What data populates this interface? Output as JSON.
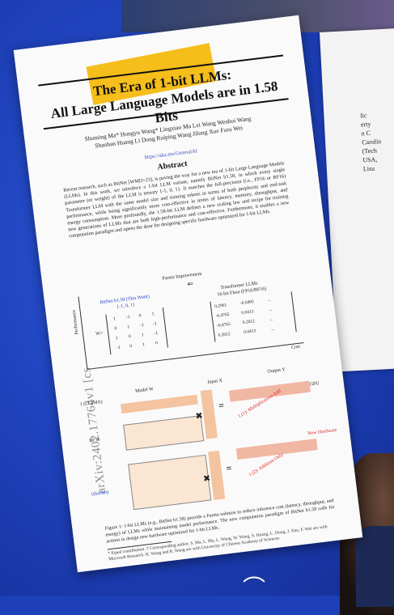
{
  "paper": {
    "title_line1": "The Era of 1-bit LLMs:",
    "title_line2": "All Large Language Models are in 1.58 Bits",
    "authors_line1": "Shuming Ma*  Hongyu Wang*  Lingxiao Ma  Lei Wang  Wenhui Wang",
    "authors_line2": "Shaohan Huang  Li Dong  Ruiping Wang  Jilong Xue  Furu Wei",
    "affiliation": "https://aka.ms/GeneralAI",
    "abstract_heading": "Abstract",
    "abstract_text": "Recent research, such as BitNet [WMD+23], is paving the way for a new era of 1-bit Large Language Models (LLMs). In this work, we introduce a 1-bit LLM variant, namely BitNet b1.58, in which every single parameter (or weight) of the LLM is ternary {-1, 0, 1}. It matches the full-precision (i.e., FP16 or BF16) Transformer LLM with the same model size and training tokens in terms of both perplexity and end-task performance, while being significantly more cost-effective in terms of latency, memory, throughput, and energy consumption. More profoundly, the 1.58-bit LLM defines a new scaling law and recipe for training new generations of LLMs that are both high-performance and cost-effective. Furthermore, it enables a new computation paradigm and opens the door for designing specific hardware optimized for 1-bit LLMs.",
    "arxiv_id": "arXiv:2402.17764v1 [cs",
    "figure": {
      "top_caption": "Pareto Improvement",
      "left_box_title": "BitNet b1.58 (This Work)",
      "left_box_sub": "{-1, 0, 1}",
      "right_box_title": "Transformer LLMs",
      "right_box_sub": "16-bit Float (FP16/BF16)",
      "w_label": "W=",
      "y_axis_label": "Performance",
      "x_axis_label": "Cost",
      "row1_label": "1 (LLaMA)",
      "row2_label": "BF16",
      "row3_label": "1(bitNet)",
      "model_label": "Model W",
      "input_label": "Input X",
      "output_label": "Output Y",
      "new_hardware": "New Hardware",
      "gpu_label": "GPU",
      "add_mul": "1.(1): Multiplication-Add",
      "add_only": "1.(2): Addition Only",
      "left_matrix": [
        "1",
        "-1",
        "0",
        "1",
        "0",
        "1",
        "-1",
        "-1",
        "1",
        "0",
        "1",
        "-1",
        "-1",
        "0",
        "1",
        "0"
      ],
      "right_matrix": [
        "0.2961",
        "-0.0495",
        "...",
        "-0.4765",
        "0.0413",
        "...",
        "-0.4765",
        "0.2812",
        "...",
        "0.2812",
        "0.0413",
        "..."
      ]
    },
    "caption": "Figure 1: 1-bit LLMs (e.g., BitNet b1.58) provide a Pareto solution to reduce inference cost (latency, throughput, and energy) of LLMs while maintaining model performance. The new computation paradigm of BitNet b1.58 calls for actions to design new hardware optimized for 1-bit LLMs.",
    "footnote": "* Equal contribution. † Corresponding author. S. Ma, L. Ma, L. Wang, W. Wang, S. Huang, L. Dong, J. Xue, F. Wei are with Microsoft Research. H. Wang and R. Wang are with University of Chinese Academy of Sciences."
  },
  "side_doc": {
    "lines": [
      "lic",
      "erty",
      "n C",
      "Carolin",
      "(Tech",
      "USA,",
      "Lisu"
    ]
  },
  "colors": {
    "background": "#1d3fb7",
    "sticky": "#f6be1a",
    "teal": "#22c9a6"
  }
}
